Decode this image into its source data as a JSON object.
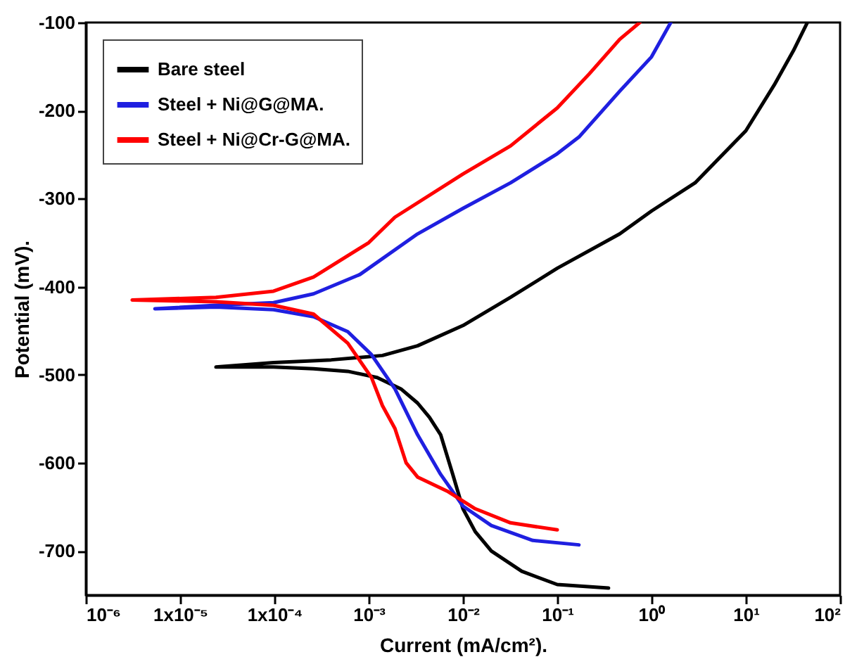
{
  "chart_data": {
    "type": "line",
    "xlabel": "Current (mA/cm²).",
    "ylabel": "Potential (mV).",
    "log": "x",
    "grid": false,
    "legend": "top left",
    "line_style": "solid",
    "xlim": [
      1e-06,
      100
    ],
    "ylim": [
      -750,
      -100
    ],
    "xticks": [
      {
        "value": 1e-06,
        "label": "10⁻⁶"
      },
      {
        "value": 1e-05,
        "label": "1x10⁻⁵"
      },
      {
        "value": 0.0001,
        "label": "1x10⁻⁴"
      },
      {
        "value": 0.001,
        "label": "10⁻³"
      },
      {
        "value": 0.01,
        "label": "10⁻²"
      },
      {
        "value": 0.1,
        "label": "10⁻¹"
      },
      {
        "value": 1,
        "label": "10⁰"
      },
      {
        "value": 10,
        "label": "10¹"
      },
      {
        "value": 100,
        "label": "10²"
      }
    ],
    "yticks": [
      -100,
      -200,
      -300,
      -400,
      -500,
      -600,
      -700
    ],
    "series": [
      {
        "name": "Bare steel",
        "color": "#000000",
        "x": [
          0.35,
          0.1,
          0.042,
          0.02,
          0.0135,
          0.01,
          0.0078,
          0.0058,
          0.0044,
          0.0033,
          0.0022,
          0.00123,
          0.0006,
          0.00026,
          9.8e-05,
          2.4e-05,
          9.8e-05,
          0.0004,
          0.0014,
          0.0033,
          0.01,
          0.032,
          0.1,
          0.46,
          1,
          2.9,
          10,
          20,
          32,
          45
        ],
        "values": [
          -742,
          -738,
          -723,
          -700,
          -678,
          -652,
          -613,
          -568,
          -548,
          -532,
          -516,
          -503,
          -496,
          -493,
          -491,
          -491,
          -486,
          -483,
          -478,
          -467,
          -444,
          -412,
          -379,
          -340,
          -314,
          -282,
          -223,
          -171,
          -132,
          -100
        ]
      },
      {
        "name": "Steel + Ni@G@MA.",
        "color": "#1f1fe0",
        "x": [
          0.17,
          0.055,
          0.02,
          0.01,
          0.0058,
          0.0033,
          0.0019,
          0.00107,
          0.0006,
          0.00026,
          9.8e-05,
          2.4e-05,
          5.4e-06,
          2.4e-05,
          9.8e-05,
          0.00026,
          0.00081,
          0.0033,
          0.01,
          0.032,
          0.1,
          0.17,
          0.46,
          1,
          1.6
        ],
        "values": [
          -693,
          -688,
          -671,
          -649,
          -613,
          -568,
          -516,
          -477,
          -451,
          -434,
          -426,
          -423,
          -425,
          -421,
          -418,
          -408,
          -386,
          -340,
          -311,
          -282,
          -249,
          -230,
          -178,
          -139,
          -100
        ]
      },
      {
        "name": "Steel + Ni@Cr-G@MA.",
        "color": "#ff0000",
        "x": [
          0.1,
          0.032,
          0.0135,
          0.0068,
          0.0033,
          0.0025,
          0.0019,
          0.0014,
          0.00107,
          0.0006,
          0.00026,
          9.8e-05,
          2.4e-05,
          3.1e-06,
          2.4e-05,
          9.8e-05,
          0.00026,
          0.001,
          0.0019,
          0.01,
          0.032,
          0.1,
          0.22,
          0.46,
          0.75
        ],
        "values": [
          -676,
          -668,
          -652,
          -632,
          -616,
          -600,
          -561,
          -535,
          -503,
          -464,
          -431,
          -421,
          -417,
          -415,
          -412,
          -405,
          -389,
          -350,
          -321,
          -272,
          -240,
          -197,
          -158,
          -119,
          -100
        ]
      }
    ]
  }
}
